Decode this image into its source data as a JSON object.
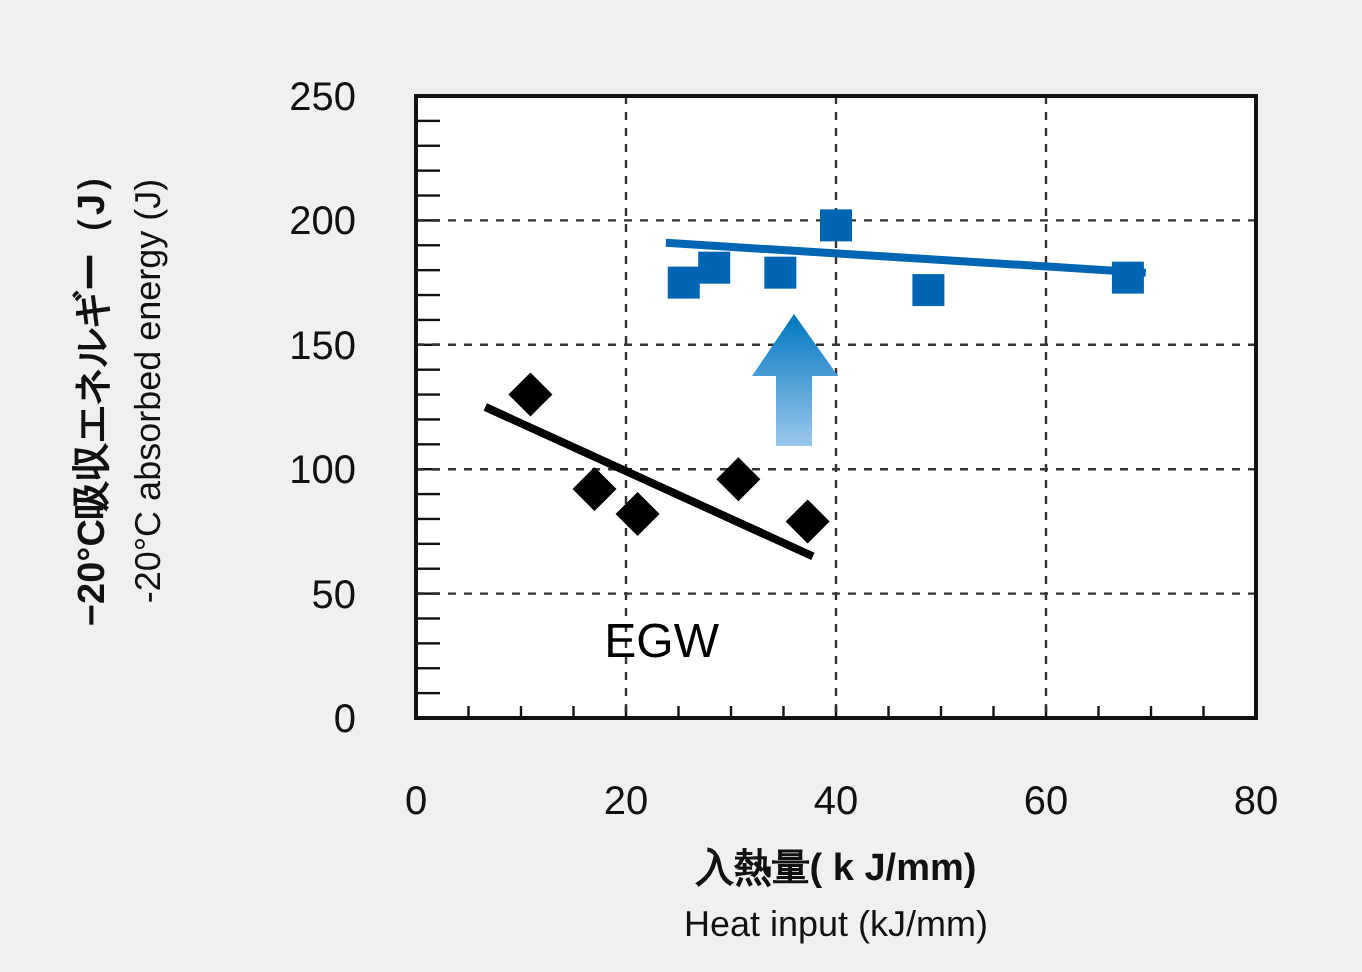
{
  "chart_data": {
    "type": "scatter",
    "xlabel": "入熱量( k J/mm)\nHeat input (kJ/mm)",
    "ylabel": "−20°C吸収エネルギー（J）\n-20°C absorbed energy (J)",
    "xlim": [
      0,
      80
    ],
    "ylim": [
      0,
      250
    ],
    "xticks": [
      0,
      {
        "value": 5,
        "label": null
      },
      {
        "value": 10,
        "label": null
      },
      {
        "value": 15,
        "label": null
      },
      20,
      {
        "value": 25,
        "label": null
      },
      {
        "value": 30,
        "label": null
      },
      {
        "value": 35,
        "label": null
      },
      40,
      {
        "value": 45,
        "label": null
      },
      {
        "value": 50,
        "label": null
      },
      {
        "value": 55,
        "label": null
      },
      60,
      {
        "value": 65,
        "label": null
      },
      {
        "value": 70,
        "label": null
      },
      {
        "value": 75,
        "label": null
      },
      80
    ],
    "yticks": [
      0,
      {
        "value": 10,
        "label": null
      },
      {
        "value": 20,
        "label": null
      },
      {
        "value": 30,
        "label": null
      },
      {
        "value": 40,
        "label": null
      },
      50,
      {
        "value": 60,
        "label": null
      },
      {
        "value": 70,
        "label": null
      },
      {
        "value": 80,
        "label": null
      },
      {
        "value": 90,
        "label": null
      },
      100,
      {
        "value": 110,
        "label": null
      },
      {
        "value": 120,
        "label": null
      },
      {
        "value": 130,
        "label": null
      },
      {
        "value": 140,
        "label": null
      },
      150,
      {
        "value": 160,
        "label": null
      },
      {
        "value": 170,
        "label": null
      },
      {
        "value": 180,
        "label": null
      },
      {
        "value": 190,
        "label": null
      },
      200,
      {
        "value": 210,
        "label": null
      },
      {
        "value": 220,
        "label": null
      },
      {
        "value": 230,
        "label": null
      },
      {
        "value": 240,
        "label": null
      },
      250
    ],
    "grid": true,
    "series": [
      {
        "marker": "square",
        "color": "#0066b3",
        "x": [
          25.5,
          28.4,
          34.7,
          40,
          48.8,
          67.8
        ],
        "values": [
          175,
          181,
          179,
          198,
          172,
          177
        ]
      },
      {
        "type": "line",
        "marker": "none",
        "color": "#0066b3",
        "x": [
          23.8,
          69.5
        ],
        "values": [
          191,
          179
        ]
      },
      {
        "name": "EGW",
        "marker": "diamond",
        "color": "#000000",
        "x": [
          10.9,
          17,
          21.1,
          30.7,
          37.3
        ],
        "values": [
          130,
          92,
          82,
          96,
          79
        ]
      },
      {
        "type": "line",
        "marker": "none",
        "color": "#000000",
        "x": [
          6.6,
          37.8
        ],
        "values": [
          125,
          65
        ]
      }
    ]
  }
}
